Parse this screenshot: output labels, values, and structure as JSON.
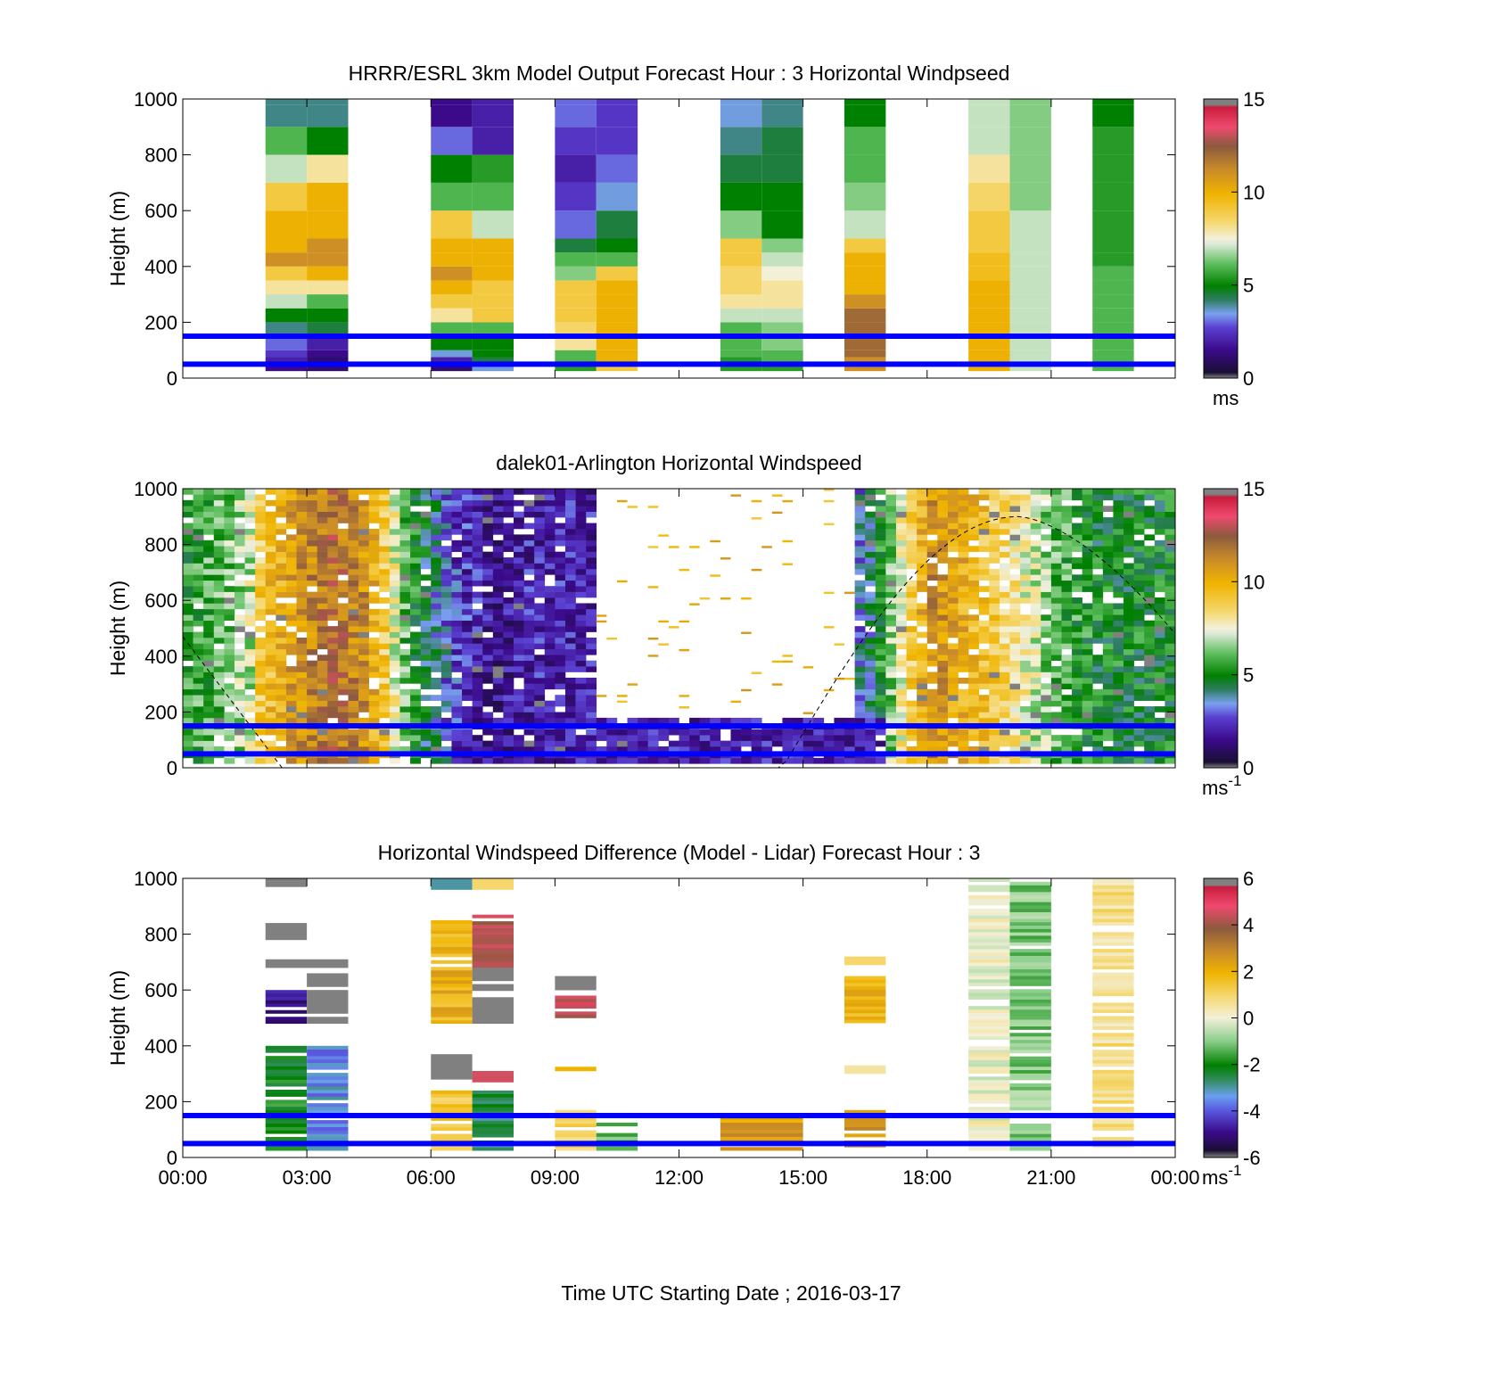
{
  "figure": {
    "xlabel": "Time UTC  Starting Date ; 2016-03-17",
    "x_ticks": [
      "00:00",
      "03:00",
      "06:00",
      "09:00",
      "12:00",
      "15:00",
      "18:00",
      "21:00",
      "00:00"
    ]
  },
  "chart_data": [
    {
      "type": "heatmap",
      "title": "HRRR/ESRL 3km Model Output   Forecast Hour : 3 Horizontal Windpseed",
      "ylabel": "Height (m)",
      "ylim": [
        0,
        1000
      ],
      "y_ticks": [
        "0",
        "200",
        "400",
        "600",
        "800",
        "1000"
      ],
      "colorbar": {
        "min": 0,
        "max": 15,
        "ticks": [
          "0",
          "5",
          "10",
          "15"
        ],
        "unit": "ms",
        "unit_sup": ""
      },
      "reference_lines_m": [
        50,
        150
      ],
      "columns": [
        {
          "start_hour": 2,
          "end_hour": 3,
          "values": [
            4,
            6,
            7,
            9,
            10,
            10,
            11,
            9,
            8,
            7,
            5,
            4,
            3,
            2.5,
            2,
            1.5
          ],
          "top": [
            980,
            1000
          ]
        },
        {
          "start_hour": 3,
          "end_hour": 4,
          "values": [
            4,
            5,
            8,
            10,
            10,
            11,
            11,
            10,
            8,
            6,
            5,
            4.5,
            2,
            1.5,
            1,
            1
          ],
          "top": [
            980,
            1000
          ]
        },
        {
          "start_hour": 6,
          "end_hour": 7,
          "values": [
            1.5,
            3,
            5,
            6,
            9,
            10,
            10,
            11,
            10,
            9,
            8,
            6,
            5,
            3.5,
            2,
            1
          ],
          "top": [
            980,
            1000
          ]
        },
        {
          "start_hour": 7,
          "end_hour": 8,
          "values": [
            2,
            2,
            5.5,
            6,
            7,
            10,
            10,
            10,
            9,
            9,
            9,
            6,
            5,
            5,
            4.5,
            3.5
          ],
          "top": [
            980,
            1000
          ]
        },
        {
          "start_hour": 9,
          "end_hour": 10,
          "values": [
            3,
            2.5,
            2,
            2.5,
            3,
            4.5,
            6,
            6.5,
            9,
            9,
            9,
            8.5,
            8,
            6,
            6,
            5.5
          ],
          "top": [
            980,
            1000
          ]
        },
        {
          "start_hour": 10,
          "end_hour": 11,
          "values": [
            2.5,
            2.5,
            3,
            3.5,
            4.5,
            5,
            6,
            9,
            10,
            10,
            10,
            10,
            10,
            10,
            10,
            9
          ],
          "top": [
            980,
            1000
          ]
        },
        {
          "start_hour": 13,
          "end_hour": 14,
          "values": [
            3.5,
            4,
            4.5,
            5,
            6.5,
            9,
            9,
            8.5,
            8.5,
            8,
            7,
            6,
            6,
            6,
            5.5,
            5.5
          ],
          "top": [
            980,
            1000
          ]
        },
        {
          "start_hour": 14,
          "end_hour": 15,
          "values": [
            4,
            4.5,
            4.5,
            5,
            5,
            6.5,
            7,
            7.5,
            8,
            8,
            7,
            6.5,
            6.5,
            6,
            6,
            5.5
          ],
          "top": [
            980,
            1000
          ]
        },
        {
          "start_hour": 16,
          "end_hour": 17,
          "values": [
            5,
            6,
            6,
            6.5,
            7,
            9,
            10,
            10,
            10,
            11,
            12,
            12,
            12,
            12,
            11,
            11
          ],
          "top": [
            980,
            1000
          ]
        },
        {
          "start_hour": 19,
          "end_hour": 20,
          "values": [
            7,
            7,
            8,
            8.5,
            9,
            9,
            9.5,
            9.5,
            10,
            10,
            10,
            10,
            10,
            10,
            10,
            10
          ],
          "top": [
            980,
            1000
          ]
        },
        {
          "start_hour": 20,
          "end_hour": 21,
          "values": [
            6.5,
            6.5,
            6.5,
            6.5,
            7,
            7,
            7,
            7,
            7,
            7,
            7,
            7,
            7,
            7,
            7,
            7
          ],
          "top": [
            980,
            1000
          ]
        },
        {
          "start_hour": 22,
          "end_hour": 23,
          "values": [
            5,
            5.5,
            5.5,
            5.5,
            5.5,
            5.5,
            5.5,
            6,
            6,
            6,
            6,
            6,
            6,
            6,
            6,
            6
          ],
          "top": [
            980,
            1000
          ]
        }
      ]
    },
    {
      "type": "heatmap",
      "title": "dalek01-Arlington  Horizontal Windspeed",
      "ylabel": "Height (m)",
      "ylim": [
        0,
        1000
      ],
      "y_ticks": [
        "0",
        "200",
        "400",
        "600",
        "800",
        "1000"
      ],
      "colorbar": {
        "min": 0,
        "max": 15,
        "ticks": [
          "0",
          "5",
          "10",
          "15"
        ],
        "unit": "ms",
        "unit_sup": "-1"
      },
      "reference_lines_m": [
        50,
        150
      ],
      "column_width_hours": 0.25,
      "profiles_hours_to_speed": [
        [
          0,
          5.5
        ],
        [
          0.75,
          6
        ],
        [
          1.5,
          7
        ],
        [
          1.75,
          9
        ],
        [
          2.25,
          10
        ],
        [
          2.75,
          11
        ],
        [
          3.5,
          12
        ],
        [
          4.25,
          11
        ],
        [
          4.75,
          9
        ],
        [
          5.25,
          6
        ],
        [
          5.75,
          4.5
        ],
        [
          6.5,
          2.5
        ],
        [
          7.5,
          1.5
        ],
        [
          8.25,
          2
        ],
        [
          9.5,
          2
        ],
        [
          10.5,
          1.5
        ],
        [
          12,
          1
        ],
        [
          14,
          1
        ],
        [
          15.5,
          1.5
        ],
        [
          16.5,
          4
        ],
        [
          17.5,
          9
        ],
        [
          18,
          11
        ],
        [
          18.75,
          10
        ],
        [
          19.5,
          9
        ],
        [
          20.25,
          7.5
        ],
        [
          21,
          6
        ],
        [
          22,
          5
        ],
        [
          24,
          5
        ]
      ],
      "gap_hours": [
        10,
        16.25
      ],
      "gap_floor_m": 170,
      "dashed_curve": [
        {
          "hour": 0,
          "height_m": 470
        },
        {
          "hour": 2.4,
          "height_m": 0
        },
        {
          "hour": 14.5,
          "height_m": 0
        },
        {
          "hour": 20.2,
          "height_m": 900
        },
        {
          "hour": 24,
          "height_m": 480
        }
      ]
    },
    {
      "type": "heatmap",
      "title": "Horizontal Windspeed Difference (Model - Lidar) Forecast Hour : 3",
      "ylabel": "Height (m)",
      "ylim": [
        0,
        1000
      ],
      "y_ticks": [
        "0",
        "200",
        "400",
        "600",
        "800",
        "1000"
      ],
      "colorbar": {
        "min": -6,
        "max": 6,
        "ticks": [
          "-6",
          "-4",
          "-2",
          "0",
          "2",
          "4",
          "6"
        ],
        "unit": "ms",
        "unit_sup": "-1"
      },
      "reference_lines_m": [
        50,
        150
      ],
      "segments": [
        {
          "start_hour": 2,
          "end_hour": 3,
          "from_m": 970,
          "to_m": 1000,
          "value": 7
        },
        {
          "start_hour": 2,
          "end_hour": 3,
          "from_m": 780,
          "to_m": 840,
          "value": 7
        },
        {
          "start_hour": 2,
          "end_hour": 4,
          "from_m": 680,
          "to_m": 710,
          "value": 7
        },
        {
          "start_hour": 2,
          "end_hour": 3,
          "from_m": 480,
          "to_m": 600,
          "value": -5
        },
        {
          "start_hour": 3,
          "end_hour": 4,
          "from_m": 480,
          "to_m": 660,
          "value": 7
        },
        {
          "start_hour": 2,
          "end_hour": 3,
          "from_m": 25,
          "to_m": 400,
          "value": -2
        },
        {
          "start_hour": 3,
          "end_hour": 4,
          "from_m": 25,
          "to_m": 400,
          "value": -3.5
        },
        {
          "start_hour": 6,
          "end_hour": 7,
          "from_m": 960,
          "to_m": 1000,
          "value": -3
        },
        {
          "start_hour": 7,
          "end_hour": 8,
          "from_m": 960,
          "to_m": 1000,
          "value": 1
        },
        {
          "start_hour": 6,
          "end_hour": 7,
          "from_m": 480,
          "to_m": 850,
          "value": 2
        },
        {
          "start_hour": 7,
          "end_hour": 8,
          "from_m": 680,
          "to_m": 870,
          "value": 4
        },
        {
          "start_hour": 7,
          "end_hour": 8,
          "from_m": 480,
          "to_m": 680,
          "value": 7
        },
        {
          "start_hour": 6,
          "end_hour": 7,
          "from_m": 280,
          "to_m": 370,
          "value": 7
        },
        {
          "start_hour": 7,
          "end_hour": 8,
          "from_m": 270,
          "to_m": 310,
          "value": 4.5
        },
        {
          "start_hour": 6,
          "end_hour": 7,
          "from_m": 25,
          "to_m": 240,
          "value": 1.5
        },
        {
          "start_hour": 7,
          "end_hour": 8,
          "from_m": 25,
          "to_m": 240,
          "value": -2.5
        },
        {
          "start_hour": 9,
          "end_hour": 10,
          "from_m": 600,
          "to_m": 650,
          "value": 7
        },
        {
          "start_hour": 9,
          "end_hour": 10,
          "from_m": 500,
          "to_m": 580,
          "value": 4.5
        },
        {
          "start_hour": 9,
          "end_hour": 10,
          "from_m": 310,
          "to_m": 325,
          "value": 2
        },
        {
          "start_hour": 9,
          "end_hour": 10,
          "from_m": 25,
          "to_m": 170,
          "value": 1
        },
        {
          "start_hour": 10,
          "end_hour": 11,
          "from_m": 25,
          "to_m": 125,
          "value": -1.5
        },
        {
          "start_hour": 13,
          "end_hour": 15,
          "from_m": 25,
          "to_m": 150,
          "value": 2.5
        },
        {
          "start_hour": 16,
          "end_hour": 17,
          "from_m": 690,
          "to_m": 720,
          "value": 1
        },
        {
          "start_hour": 16,
          "end_hour": 17,
          "from_m": 470,
          "to_m": 650,
          "value": 2
        },
        {
          "start_hour": 16,
          "end_hour": 17,
          "from_m": 300,
          "to_m": 330,
          "value": 0.5
        },
        {
          "start_hour": 16,
          "end_hour": 17,
          "from_m": 25,
          "to_m": 170,
          "value": 2.5
        },
        {
          "start_hour": 19,
          "end_hour": 20,
          "from_m": 25,
          "to_m": 1000,
          "value": 0
        },
        {
          "start_hour": 20,
          "end_hour": 21,
          "from_m": 25,
          "to_m": 1000,
          "value": -1
        },
        {
          "start_hour": 22,
          "end_hour": 23,
          "from_m": 25,
          "to_m": 1000,
          "value": 0.7
        }
      ]
    }
  ]
}
